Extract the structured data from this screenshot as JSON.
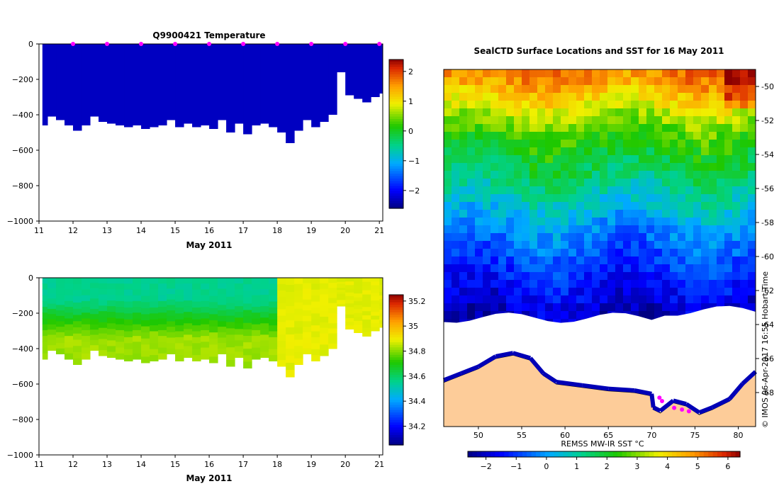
{
  "chart_data": [
    {
      "type": "heatmap",
      "title": "Q9900421  Temperature",
      "xlabel": "May 2011",
      "ylabel": "",
      "xlim": [
        11,
        21.1
      ],
      "ylim": [
        -1000,
        0
      ],
      "x_ticks": [
        "11",
        "12",
        "13",
        "14",
        "15",
        "16",
        "17",
        "18",
        "19",
        "20",
        "21"
      ],
      "y_ticks": [
        "0",
        "−200",
        "−400",
        "−600",
        "−800",
        "−1000"
      ],
      "colorbar": {
        "min": -2.6,
        "max": 2.4,
        "ticks": [
          "2",
          "1",
          "0",
          "−1",
          "−2"
        ],
        "tick_values": [
          2,
          1,
          0,
          -1,
          -2
        ]
      },
      "profile_markers_days": [
        12,
        13,
        14,
        15,
        16,
        17,
        18,
        19,
        20,
        21
      ],
      "profile_depths": [
        [
          11.1,
          -460
        ],
        [
          11.25,
          -410
        ],
        [
          11.5,
          -430
        ],
        [
          11.75,
          -460
        ],
        [
          12.0,
          -490
        ],
        [
          12.25,
          -460
        ],
        [
          12.5,
          -410
        ],
        [
          12.75,
          -440
        ],
        [
          13.0,
          -450
        ],
        [
          13.25,
          -460
        ],
        [
          13.5,
          -470
        ],
        [
          13.75,
          -460
        ],
        [
          14.0,
          -480
        ],
        [
          14.25,
          -470
        ],
        [
          14.5,
          -460
        ],
        [
          14.75,
          -430
        ],
        [
          15.0,
          -470
        ],
        [
          15.25,
          -450
        ],
        [
          15.5,
          -470
        ],
        [
          15.75,
          -460
        ],
        [
          16.0,
          -480
        ],
        [
          16.25,
          -430
        ],
        [
          16.5,
          -500
        ],
        [
          16.75,
          -450
        ],
        [
          17.0,
          -510
        ],
        [
          17.25,
          -460
        ],
        [
          17.5,
          -450
        ],
        [
          17.75,
          -470
        ],
        [
          18.0,
          -500
        ],
        [
          18.25,
          -560
        ],
        [
          18.5,
          -490
        ],
        [
          18.75,
          -430
        ],
        [
          19.0,
          -470
        ],
        [
          19.25,
          -440
        ],
        [
          19.5,
          -400
        ],
        [
          19.75,
          -160
        ],
        [
          20.0,
          -290
        ],
        [
          20.25,
          -310
        ],
        [
          20.5,
          -330
        ],
        [
          20.75,
          -300
        ],
        [
          21.0,
          -280
        ]
      ]
    },
    {
      "type": "heatmap",
      "title": "",
      "xlabel": "May 2011",
      "ylabel": "",
      "xlim": [
        11,
        21.1
      ],
      "ylim": [
        -1000,
        0
      ],
      "x_ticks": [
        "11",
        "12",
        "13",
        "14",
        "15",
        "16",
        "17",
        "18",
        "19",
        "20",
        "21"
      ],
      "y_ticks": [
        "0",
        "−200",
        "−400",
        "−600",
        "−800",
        "−1000"
      ],
      "colorbar": {
        "min": 34.05,
        "max": 35.25,
        "ticks": [
          "35.2",
          "35",
          "34.8",
          "34.6",
          "34.4",
          "34.2"
        ],
        "tick_values": [
          35.2,
          35.0,
          34.8,
          34.6,
          34.4,
          34.2
        ]
      },
      "surface_salinity_before_day18": 34.55,
      "deep_salinity_before_day18": 34.82,
      "salinity_after_day18": 34.88
    },
    {
      "type": "heatmap",
      "title": "SealCTD Surface Locations and SST for 16 May 2011",
      "xlabel": "REMSS MW-IR SST °C",
      "ylabel": "",
      "xlim": [
        46,
        82
      ],
      "ylim": [
        -70,
        -49
      ],
      "x_ticks": [
        "50",
        "55",
        "60",
        "65",
        "70",
        "75",
        "80"
      ],
      "y_ticks": [
        "-50",
        "-52",
        "-54",
        "-56",
        "-58",
        "-60",
        "-62",
        "-64",
        "-66",
        "-68"
      ],
      "colorbar": {
        "min": -2.6,
        "max": 6.4,
        "ticks": [
          "−2",
          "−1",
          "0",
          "1",
          "2",
          "3",
          "4",
          "5",
          "6"
        ],
        "tick_values": [
          -2,
          -1,
          0,
          1,
          2,
          3,
          4,
          5,
          6
        ]
      },
      "sst_by_latitude": [
        [
          -49.5,
          5.0
        ],
        [
          -51,
          3.8
        ],
        [
          -53,
          2.4
        ],
        [
          -55,
          1.6
        ],
        [
          -57,
          0.6
        ],
        [
          -59,
          -0.4
        ],
        [
          -61,
          -1.2
        ],
        [
          -63,
          -1.9
        ],
        [
          -64,
          -2.1
        ]
      ]
    }
  ],
  "credit": "©  IMOS 06-Apr-2017 16:55 Hobart Time",
  "colors": {
    "land": "#fdcc99",
    "marker": "#ff00ff",
    "background": "#ffffff"
  }
}
